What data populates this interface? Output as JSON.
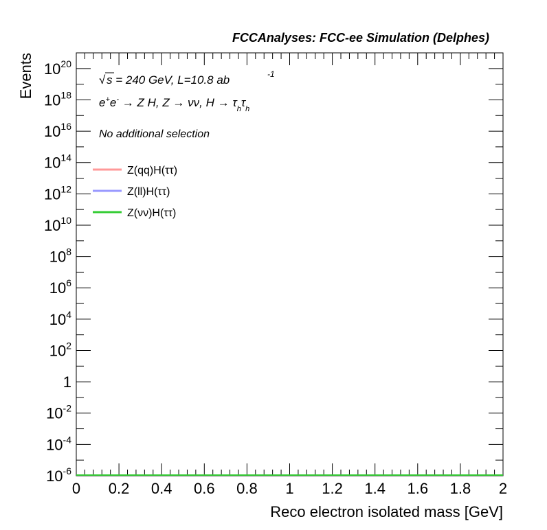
{
  "chart_data": {
    "type": "line",
    "header": "FCCAnalyses: FCC-ee Simulation (Delphes)",
    "xlabel": "Reco electron isolated mass [GeV]",
    "ylabel": "Events",
    "xlim": [
      0,
      2
    ],
    "ylim_log10": [
      -6,
      21
    ],
    "log_y": true,
    "grid": false,
    "x_ticks": [
      "0",
      "0.2",
      "0.4",
      "0.6",
      "0.8",
      "1",
      "1.2",
      "1.4",
      "1.6",
      "1.8",
      "2"
    ],
    "y_ticks": [
      {
        "base": "10",
        "exp": "-6",
        "value": -6
      },
      {
        "base": "10",
        "exp": "-4",
        "value": -4
      },
      {
        "base": "10",
        "exp": "-2",
        "value": -2
      },
      {
        "base": "1",
        "exp": "",
        "value": 0
      },
      {
        "base": "10",
        "exp": "2",
        "value": 2
      },
      {
        "base": "10",
        "exp": "4",
        "value": 4
      },
      {
        "base": "10",
        "exp": "6",
        "value": 6
      },
      {
        "base": "10",
        "exp": "8",
        "value": 8
      },
      {
        "base": "10",
        "exp": "10",
        "value": 10
      },
      {
        "base": "10",
        "exp": "12",
        "value": 12
      },
      {
        "base": "10",
        "exp": "14",
        "value": 14
      },
      {
        "base": "10",
        "exp": "16",
        "value": 16
      },
      {
        "base": "10",
        "exp": "18",
        "value": 18
      },
      {
        "base": "10",
        "exp": "20",
        "value": 20
      }
    ],
    "annotations": {
      "energy_prefix": "s = 240 GeV, L=10.8 ab",
      "sqrt_symbol": "√",
      "lumi_exp": "-1",
      "process": {
        "p1": "e",
        "p1_sup": "+",
        "p2": "e",
        "p2_sup": "-",
        "rest": " → Z H, Z  → νν, H → τ",
        "sub1": "h",
        "tau": "τ",
        "sub2": "h"
      },
      "selection": "No additional selection"
    },
    "legend_position": "top-left",
    "series": [
      {
        "name": "Z(qq)H(ττ)",
        "color": "#ff9999",
        "values": [
          0,
          0
        ]
      },
      {
        "name": "Z(ll)H(ττ)",
        "color": "#9999ff",
        "values": [
          0,
          0
        ]
      },
      {
        "name": "Z(νν)H(ττ)",
        "color": "#33cc33",
        "values": [
          0,
          0
        ]
      }
    ]
  }
}
